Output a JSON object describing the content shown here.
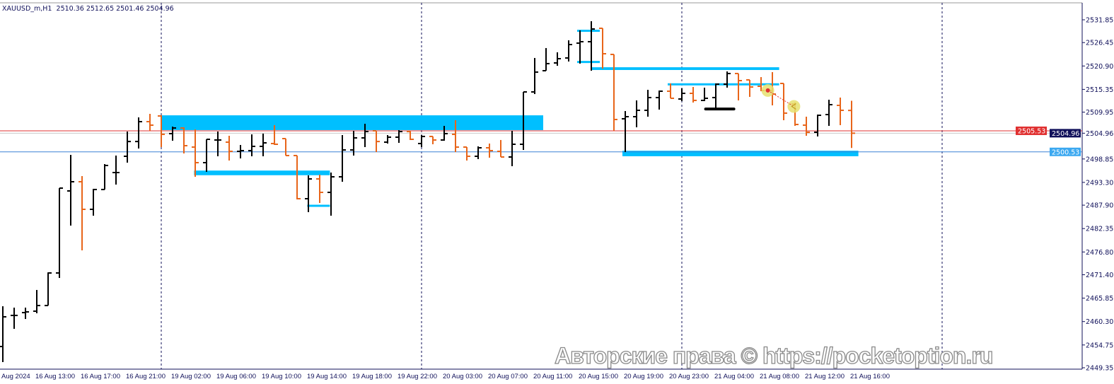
{
  "header": {
    "symbol": "XAUUSD_m,H1",
    "ohlc_text": "2510.36 2512.65 2501.46 2504.96"
  },
  "watermark": "Авторские права © https://pocketoption.ru",
  "colors": {
    "bull": "#000000",
    "bear": "#e8651a",
    "zone": "#00bfff",
    "red_line": "#e03030",
    "blue_line": "#3b82d6",
    "axis_text": "#10105a",
    "separator": "#10105a"
  },
  "price_labels": {
    "bid_label": "2504.96",
    "blue_line_label": "2500.53",
    "red_line_label": "2505.53"
  },
  "chart_data": {
    "type": "ohlc",
    "title": "",
    "ylim": [
      2449.35,
      2531.85
    ],
    "y_ticks": [
      "2531.85",
      "2526.45",
      "2520.90",
      "2515.35",
      "2509.95",
      "2504.96",
      "2498.85",
      "2493.30",
      "2487.90",
      "2482.35",
      "2476.80",
      "2471.40",
      "2465.85",
      "2460.30",
      "2454.75",
      "2449.35"
    ],
    "x_tick_labels": [
      "Aug 2024",
      "16 Aug 13:00",
      "16 Aug 17:00",
      "16 Aug 21:00",
      "19 Aug 02:00",
      "19 Aug 06:00",
      "19 Aug 10:00",
      "19 Aug 14:00",
      "19 Aug 18:00",
      "19 Aug 22:00",
      "20 Aug 03:00",
      "20 Aug 07:00",
      "20 Aug 11:00",
      "20 Aug 15:00",
      "20 Aug 19:00",
      "20 Aug 23:00",
      "21 Aug 04:00",
      "21 Aug 08:00",
      "21 Aug 12:00",
      "21 Aug 16:00"
    ],
    "bars": [
      [
        2454.38,
        2463.93,
        2450.69,
        2461.42
      ],
      [
        2461.75,
        2463.6,
        2458.57,
        2461.75
      ],
      [
        2462.42,
        2463.6,
        2460.91,
        2462.59
      ],
      [
        2462.76,
        2467.79,
        2462.26,
        2464.1
      ],
      [
        2464.1,
        2471.96,
        2464.1,
        2471.82
      ],
      [
        2471.82,
        2491.94,
        2470.64,
        2491.94
      ],
      [
        2491.27,
        2499.82,
        2483.05,
        2493.45
      ],
      [
        2493.45,
        2494.79,
        2477.18,
        2486.91
      ],
      [
        2486.91,
        2491.77,
        2485.4,
        2491.61
      ],
      [
        2491.61,
        2497.64,
        2491.61,
        2497.31
      ],
      [
        2495.63,
        2499.66,
        2492.78,
        2495.63
      ],
      [
        2499.49,
        2505.36,
        2497.98,
        2502.99
      ],
      [
        2502.99,
        2508.71,
        2501.33,
        2507.7
      ],
      [
        2507.7,
        2509.55,
        2505.53,
        2506.87
      ],
      [
        2509.05,
        2509.22,
        2501.67,
        2504.69
      ],
      [
        2504.86,
        2506.53,
        2503.18,
        2506.2
      ],
      [
        2506.2,
        2506.36,
        2500.16,
        2502.0
      ],
      [
        2501.67,
        2505.86,
        2494.62,
        2497.98
      ],
      [
        2497.98,
        2503.51,
        2495.8,
        2503.51
      ],
      [
        2503.35,
        2505.36,
        2499.49,
        2503.35
      ],
      [
        2502.84,
        2504.35,
        2498.48,
        2500.66
      ],
      [
        2500.66,
        2502.17,
        2498.99,
        2500.83
      ],
      [
        2500.83,
        2504.69,
        2499.49,
        2501.84
      ],
      [
        2501.84,
        2504.86,
        2499.49,
        2502.67
      ],
      [
        2502.51,
        2506.87,
        2502.17,
        2502.34
      ],
      [
        2503.68,
        2503.68,
        2499.66,
        2499.66
      ],
      [
        2499.66,
        2499.66,
        2489.26,
        2489.43
      ],
      [
        2489.43,
        2494.96,
        2486.24,
        2494.12
      ],
      [
        2494.12,
        2495.13,
        2488.42,
        2490.93
      ],
      [
        2490.93,
        2495.63,
        2485.4,
        2494.62
      ],
      [
        2494.62,
        2504.52,
        2493.45,
        2500.99
      ],
      [
        2500.99,
        2505.53,
        2499.66,
        2503.85
      ],
      [
        2503.85,
        2507.2,
        2501.67,
        2505.36
      ],
      [
        2505.53,
        2505.53,
        2500.49,
        2502.99
      ],
      [
        2502.84,
        2504.52,
        2502.51,
        2504.02
      ],
      [
        2504.02,
        2505.69,
        2502.67,
        2505.36
      ],
      [
        2505.36,
        2505.53,
        2503.35,
        2503.51
      ],
      [
        2502.51,
        2504.52,
        2501.67,
        2504.19
      ],
      [
        2504.19,
        2504.19,
        2502.34,
        2503.35
      ],
      [
        2503.35,
        2506.7,
        2503.18,
        2504.86
      ],
      [
        2504.69,
        2508.04,
        2500.49,
        2501.67
      ],
      [
        2501.67,
        2501.67,
        2498.48,
        2499.49
      ],
      [
        2499.49,
        2501.84,
        2498.82,
        2501.5
      ],
      [
        2501.5,
        2502.51,
        2499.15,
        2500.83
      ],
      [
        2500.66,
        2503.35,
        2499.32,
        2499.32
      ],
      [
        2499.32,
        2505.53,
        2497.14,
        2502.34
      ],
      [
        2502.34,
        2514.75,
        2500.99,
        2514.75
      ],
      [
        2514.75,
        2522.8,
        2514.24,
        2519.45
      ],
      [
        2519.78,
        2525.15,
        2519.78,
        2521.46
      ],
      [
        2521.62,
        2524.14,
        2520.95,
        2522.63
      ],
      [
        2522.8,
        2526.99,
        2521.96,
        2525.98
      ],
      [
        2526.32,
        2529.34,
        2521.46,
        2526.66
      ],
      [
        2526.66,
        2531.52,
        2519.78,
        2529.67
      ],
      [
        2529.84,
        2529.84,
        2520.28,
        2523.8
      ],
      [
        2523.64,
        2523.64,
        2505.53,
        2508.21
      ],
      [
        2508.38,
        2510.22,
        2500.49,
        2508.88
      ],
      [
        2508.88,
        2512.74,
        2506.36,
        2510.39
      ],
      [
        2510.39,
        2515.25,
        2508.88,
        2513.41
      ],
      [
        2513.41,
        2515.08,
        2510.56,
        2514.92
      ],
      [
        2514.92,
        2516.76,
        2513.24,
        2513.24
      ],
      [
        2513.07,
        2515.59,
        2512.57,
        2514.41
      ],
      [
        2514.41,
        2515.92,
        2512.23,
        2512.74
      ],
      [
        2512.74,
        2515.76,
        2512.57,
        2513.24
      ],
      [
        2513.41,
        2516.76,
        2510.89,
        2516.59
      ],
      [
        2516.59,
        2519.61,
        2515.76,
        2519.11
      ],
      [
        2519.11,
        2519.11,
        2512.74,
        2517.43
      ],
      [
        2517.6,
        2517.6,
        2513.57,
        2515.92
      ],
      [
        2516.09,
        2518.27,
        2514.92,
        2515.08
      ],
      [
        2515.08,
        2519.44,
        2511.56,
        2514.24
      ],
      [
        2516.76,
        2516.76,
        2508.04,
        2509.72
      ],
      [
        2511.9,
        2512.23,
        2506.7,
        2507.03
      ],
      [
        2506.87,
        2508.88,
        2504.35,
        2505.19
      ],
      [
        2505.19,
        2509.38,
        2504.19,
        2509.21
      ],
      [
        2509.38,
        2512.9,
        2506.7,
        2511.73
      ],
      [
        2511.56,
        2513.41,
        2506.87,
        2510.39
      ],
      [
        2510.36,
        2512.65,
        2501.46,
        2504.96
      ]
    ],
    "horizontal_lines": [
      {
        "price": 2505.53,
        "color": "#e03030"
      },
      {
        "price": 2504.96,
        "color": "#c8c8c8"
      },
      {
        "price": 2500.53,
        "color": "#3b82d6"
      }
    ],
    "zones": [
      {
        "from_bar": 14,
        "to_bar": 47.75,
        "top": 2509.2,
        "bottom": 2505.7
      },
      {
        "from_bar": 16.9,
        "to_bar": 28.9,
        "top": 2496.1,
        "bottom": 2495.0
      },
      {
        "from_bar": 26.9,
        "to_bar": 28.9,
        "top": 2488.0,
        "bottom": 2487.7
      },
      {
        "from_bar": 50.75,
        "to_bar": 52.75,
        "top": 2529.5,
        "bottom": 2529.0
      },
      {
        "from_bar": 50.75,
        "to_bar": 52.75,
        "top": 2522.1,
        "bottom": 2521.6
      },
      {
        "from_bar": 52,
        "to_bar": 68.6,
        "top": 2520.6,
        "bottom": 2519.95
      },
      {
        "from_bar": 58.75,
        "to_bar": 68.6,
        "top": 2516.8,
        "bottom": 2516.3
      },
      {
        "from_bar": 54.75,
        "to_bar": 75.6,
        "top": 2500.8,
        "bottom": 2499.5
      }
    ],
    "black_marker": {
      "from_bar": 62.1,
      "to_bar": 64.6,
      "price": 2510.7
    },
    "day_separators_bars": [
      14,
      37,
      60,
      83
    ],
    "trade_arrow": {
      "from": {
        "bar": 67.6,
        "price": 2515.1
      },
      "to": {
        "bar": 69.9,
        "price": 2511.3
      }
    }
  }
}
